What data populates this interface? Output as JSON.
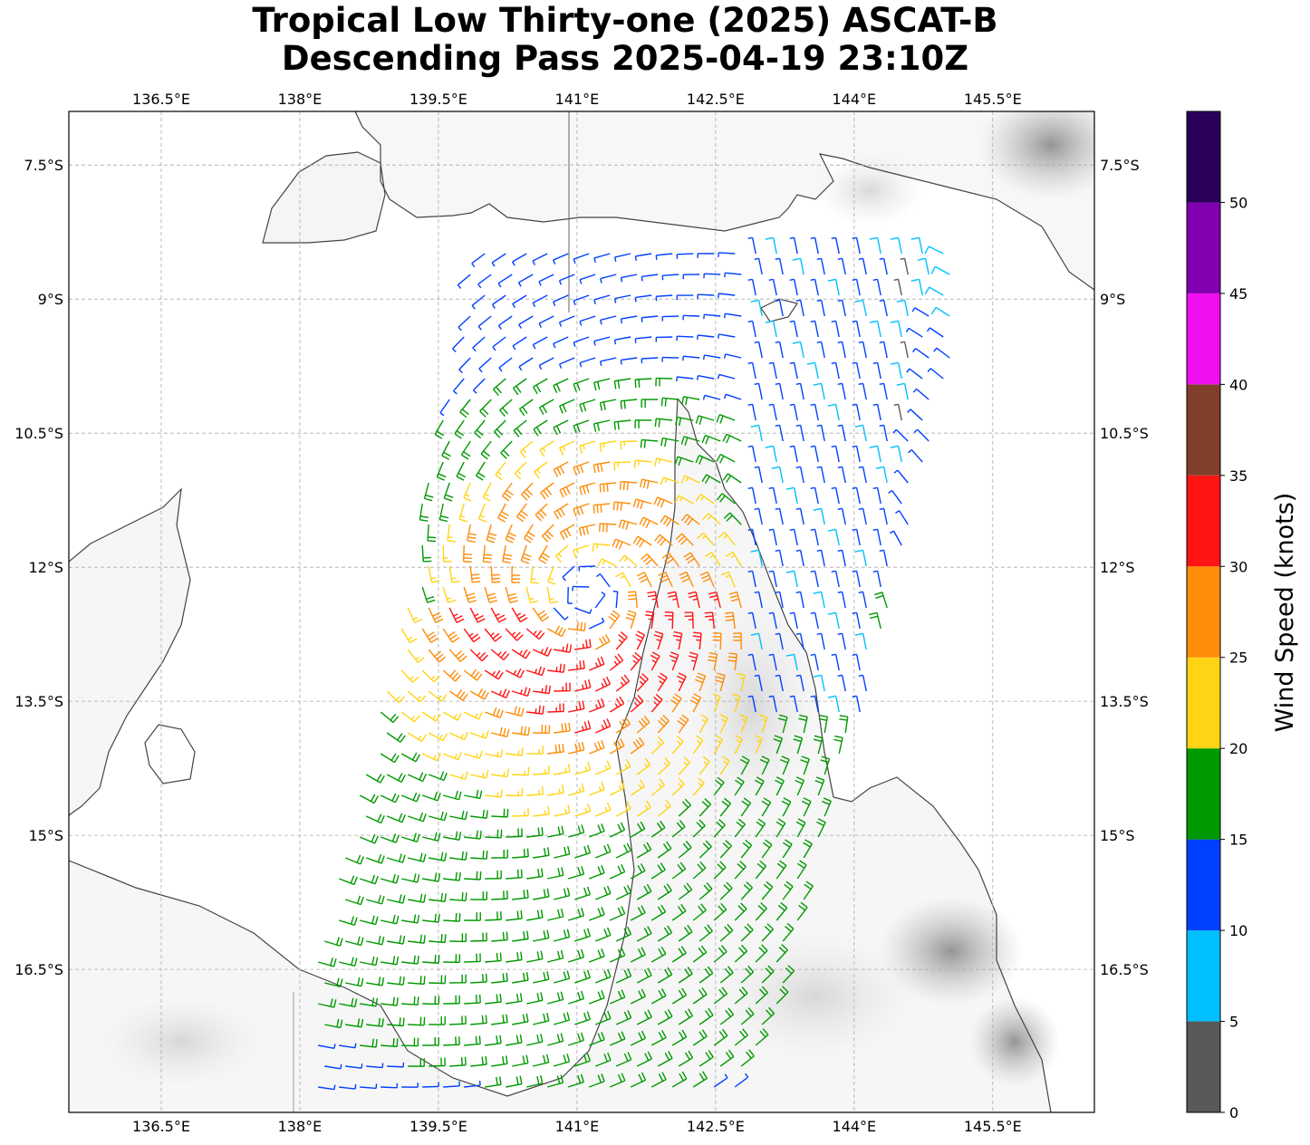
{
  "title": {
    "line1": "Tropical Low Thirty-one (2025) ASCAT-B",
    "line2": "Descending Pass 2025-04-19 23:10Z"
  },
  "map": {
    "lon_range": [
      135.5,
      146.6
    ],
    "lat_range": [
      -18.1,
      -6.9
    ],
    "lon_ticks": [
      136.5,
      138,
      139.5,
      141,
      142.5,
      144,
      145.5
    ],
    "lon_tick_labels": [
      "136.5°E",
      "138°E",
      "139.5°E",
      "141°E",
      "142.5°E",
      "144°E",
      "145.5°E"
    ],
    "lat_ticks": [
      -7.5,
      -9,
      -10.5,
      -12,
      -13.5,
      -15,
      -16.5
    ],
    "lat_tick_labels": [
      "7.5°S",
      "9°S",
      "10.5°S",
      "12°S",
      "13.5°S",
      "15°S",
      "16.5°S"
    ],
    "gridlines": true,
    "wind_barbs_low_center": {
      "lon": 141.1,
      "lat": -12.3
    }
  },
  "colorbar": {
    "label": "Wind Speed (knots)",
    "tick_values": [
      0,
      5,
      10,
      15,
      20,
      25,
      30,
      35,
      40,
      45,
      50
    ],
    "tick_labels": [
      "0",
      "5",
      "10",
      "15",
      "20",
      "25",
      "30",
      "35",
      "40",
      "45",
      "50"
    ],
    "bins": [
      {
        "from": 0,
        "to": 5,
        "color": "#595959"
      },
      {
        "from": 5,
        "to": 10,
        "color": "#00bfff"
      },
      {
        "from": 10,
        "to": 15,
        "color": "#0040ff"
      },
      {
        "from": 15,
        "to": 20,
        "color": "#009900"
      },
      {
        "from": 20,
        "to": 25,
        "color": "#ffd414"
      },
      {
        "from": 25,
        "to": 30,
        "color": "#ff8c0a"
      },
      {
        "from": 30,
        "to": 35,
        "color": "#ff1414"
      },
      {
        "from": 35,
        "to": 40,
        "color": "#7f3f2a"
      },
      {
        "from": 40,
        "to": 45,
        "color": "#f00ff0"
      },
      {
        "from": 45,
        "to": 50,
        "color": "#8000b0"
      },
      {
        "from": 50,
        "to": 55,
        "color": "#2a005a"
      }
    ]
  }
}
